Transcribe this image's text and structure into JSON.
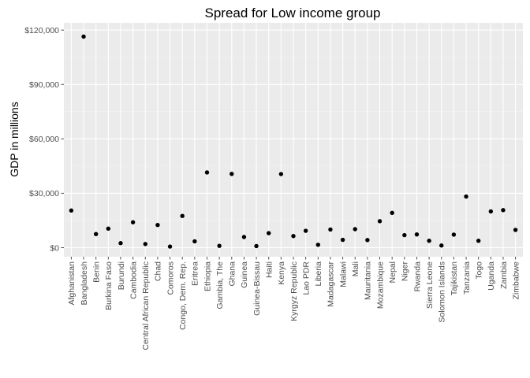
{
  "chart_data": {
    "type": "scatter",
    "title": "Spread for Low income group",
    "xlabel": "",
    "ylabel": "GDP in millions",
    "ylim": [
      -5000,
      124000
    ],
    "yticks": [
      0,
      30000,
      60000,
      90000,
      120000
    ],
    "ytick_labels": [
      "$0",
      "$30,000",
      "$60,000",
      "$90,000",
      "$120,000"
    ],
    "grid": true,
    "categories": [
      "Afghanistan",
      "Bangladesh",
      "Benin",
      "Burkina Faso",
      "Burundi",
      "Cambodia",
      "Central African Republic",
      "Chad",
      "Comoros",
      "Congo, Dem. Rep.",
      "Eritrea",
      "Ethiopia",
      "Gambia, The",
      "Ghana",
      "Guinea",
      "Guinea-Bissau",
      "Haiti",
      "Kenya",
      "Kyrgyz Republic",
      "Lao PDR",
      "Liberia",
      "Madagascar",
      "Malawi",
      "Mali",
      "Mauritania",
      "Mozambique",
      "Nepal",
      "Niger",
      "Rwanda",
      "Sierra Leone",
      "Solomon Islands",
      "Tajikistan",
      "Tanzania",
      "Togo",
      "Uganda",
      "Zambia",
      "Zimbabwe"
    ],
    "values": [
      20500,
      116400,
      7500,
      10500,
      2500,
      14000,
      2000,
      12500,
      600,
      17500,
      3500,
      41500,
      1000,
      40700,
      5900,
      900,
      8000,
      40600,
      6400,
      9300,
      1600,
      10000,
      4300,
      10200,
      4200,
      14600,
      19200,
      6900,
      7300,
      3800,
      1200,
      7200,
      28200,
      3800,
      20000,
      20700,
      9800
    ],
    "colors": {
      "panel": "#ebebeb",
      "grid_major": "#ffffff",
      "grid_minor": "#f5f5f5",
      "point": "#000000",
      "tick": "#4d4d4d"
    }
  }
}
